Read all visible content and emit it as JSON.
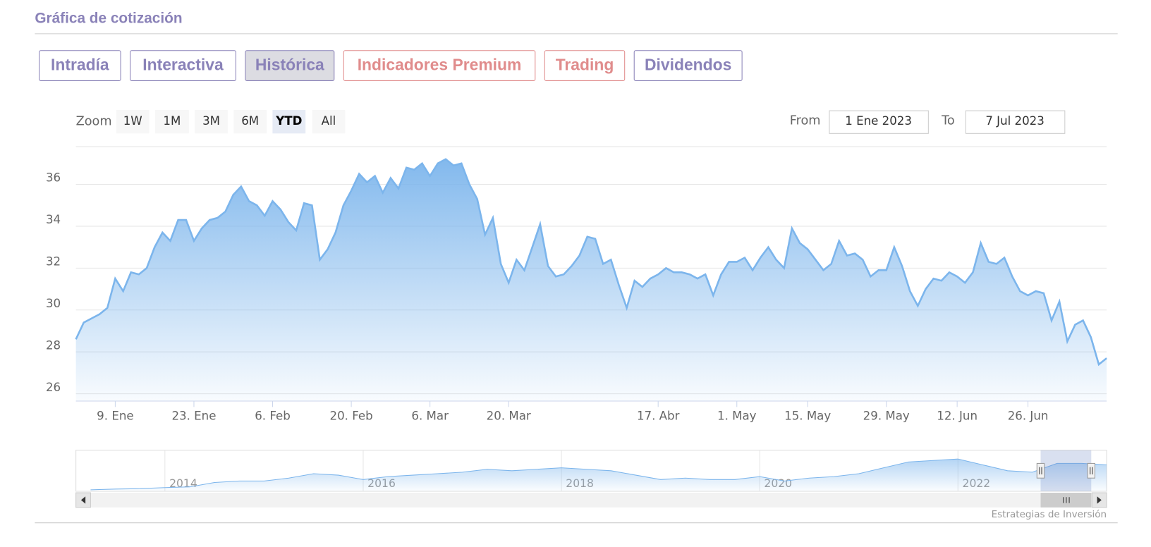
{
  "header": {
    "title": "Gráfica de cotización"
  },
  "tabs": [
    "Intradía",
    "Interactiva",
    "Histórica",
    "Indicadores Premium",
    "Trading",
    "Dividendos"
  ],
  "range_selector": {
    "zoom_label": "Zoom",
    "buttons": [
      "1W",
      "1M",
      "3M",
      "6M",
      "YTD",
      "All"
    ],
    "from_label": "From",
    "from": "1 Ene 2023",
    "to_label": "To",
    "to": "7 Jul 2023"
  },
  "credit": "Estrategias de Inversión",
  "chart_data": [
    {
      "type": "area",
      "color": "#7cb5ec",
      "grid": true,
      "categories": [
        null,
        null,
        null,
        null,
        null,
        "9. Ene",
        null,
        null,
        null,
        null,
        null,
        null,
        null,
        null,
        null,
        "23. Ene",
        null,
        null,
        null,
        null,
        null,
        null,
        null,
        null,
        null,
        "6. Feb",
        null,
        null,
        null,
        null,
        null,
        null,
        null,
        null,
        null,
        "20. Feb",
        null,
        null,
        null,
        null,
        null,
        null,
        null,
        null,
        null,
        "6. Mar",
        null,
        null,
        null,
        null,
        null,
        null,
        null,
        null,
        null,
        "20. Mar",
        null,
        null,
        null,
        null,
        null,
        null,
        null,
        null,
        null,
        null,
        null,
        null,
        null,
        null,
        null,
        null,
        null,
        null,
        "17. Abr",
        null,
        null,
        null,
        null,
        null,
        null,
        null,
        null,
        null,
        "1. May",
        null,
        null,
        null,
        null,
        null,
        null,
        null,
        null,
        "15. May",
        null,
        null,
        null,
        null,
        null,
        null,
        null,
        null,
        null,
        "29. May",
        null,
        null,
        null,
        null,
        null,
        null,
        null,
        null,
        "12. Jun",
        null,
        null,
        null,
        null,
        null,
        null,
        null,
        null,
        "26. Jun",
        null,
        null,
        null,
        null,
        null,
        null,
        null,
        null,
        null,
        null
      ],
      "values": [
        28.6,
        29.4,
        29.6,
        29.8,
        30.1,
        31.5,
        30.9,
        31.8,
        31.7,
        32.0,
        33.0,
        33.7,
        33.3,
        34.3,
        34.3,
        33.3,
        33.9,
        34.3,
        34.4,
        34.7,
        35.5,
        35.9,
        35.2,
        35.0,
        34.5,
        35.2,
        34.8,
        34.2,
        33.8,
        35.1,
        35.0,
        32.4,
        32.9,
        33.7,
        35.0,
        35.7,
        36.5,
        36.1,
        36.4,
        35.6,
        36.3,
        35.8,
        36.8,
        36.7,
        37.0,
        36.4,
        37.0,
        37.2,
        36.9,
        37.0,
        36.0,
        35.3,
        33.6,
        34.4,
        32.2,
        31.3,
        32.4,
        31.9,
        33.0,
        34.1,
        32.1,
        31.6,
        31.7,
        32.1,
        32.6,
        33.5,
        33.4,
        32.2,
        32.4,
        31.2,
        30.1,
        31.4,
        31.1,
        31.5,
        31.7,
        32.0,
        31.8,
        31.8,
        31.7,
        31.5,
        31.7,
        30.7,
        31.7,
        32.3,
        32.3,
        32.5,
        31.9,
        32.5,
        33.0,
        32.4,
        32.0,
        33.9,
        33.2,
        32.9,
        32.4,
        31.9,
        32.2,
        33.3,
        32.6,
        32.7,
        32.4,
        31.6,
        31.9,
        31.9,
        33.0,
        32.1,
        30.9,
        30.2,
        31.0,
        31.5,
        31.4,
        31.8,
        31.6,
        31.3,
        31.8,
        33.2,
        32.3,
        32.2,
        32.5,
        31.6,
        30.9,
        30.7,
        30.9,
        30.8,
        29.5,
        30.4,
        28.5,
        29.3,
        29.5,
        28.7,
        27.4,
        27.7
      ],
      "ylim": [
        25.65,
        37.8
      ],
      "yticks": [
        26,
        28,
        30,
        32,
        34,
        36
      ]
    },
    {
      "type": "area",
      "color": "#7cb5ec",
      "categories": [
        null,
        null,
        null,
        "2014",
        null,
        null,
        null,
        null,
        null,
        null,
        null,
        "2016",
        null,
        null,
        null,
        null,
        null,
        null,
        null,
        "2018",
        null,
        null,
        null,
        null,
        null,
        null,
        null,
        "2020",
        null,
        null,
        null,
        null,
        null,
        null,
        null,
        "2022",
        null,
        null,
        null,
        null,
        null,
        null
      ],
      "values": [
        13,
        13.5,
        13.8,
        14.5,
        15,
        18,
        19,
        19,
        21,
        24,
        23,
        20,
        22,
        23,
        24,
        25,
        27,
        26,
        27,
        28,
        27,
        26,
        23,
        20,
        21,
        20,
        20,
        22,
        19,
        21,
        22,
        24,
        28,
        32,
        33,
        34,
        30,
        26,
        25,
        31,
        31,
        30
      ],
      "ylim": [
        12,
        40
      ]
    }
  ]
}
